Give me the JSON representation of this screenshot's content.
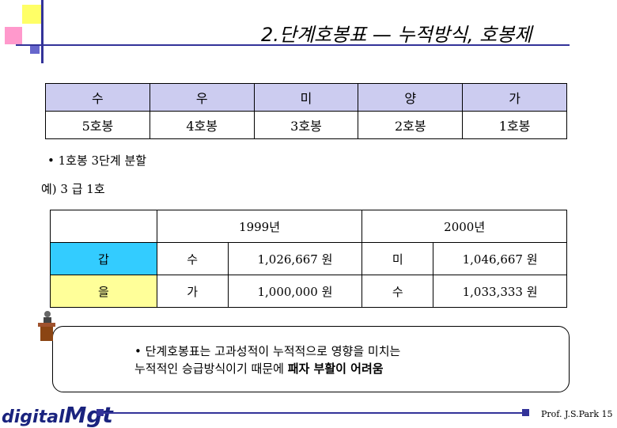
{
  "title": "2.단계호봉표 — 누적방식, 호봉제",
  "grade_table": {
    "headers": [
      "수",
      "우",
      "미",
      "양",
      "가"
    ],
    "values": [
      "5호봉",
      "4호봉",
      "3호봉",
      "2호봉",
      "1호봉"
    ]
  },
  "bullet1": "• 1호봉 3단계 분할",
  "example": "예) 3 급 1호",
  "pay_table": {
    "year1": "1999년",
    "year2": "2000년",
    "rows": [
      {
        "name": "갑",
        "g1": "수",
        "p1": "1,026,667 원",
        "g2": "미",
        "p2": "1,046,667 원"
      },
      {
        "name": "을",
        "g1": "가",
        "p1": "1,000,000 원",
        "g2": "수",
        "p2": "1,033,333 원"
      }
    ]
  },
  "callout": {
    "line1": "• 단계호봉표는 고과성적이 누적적으로 영향을 미치는",
    "line2_pre": "누적적인 승급방식이기 때문에 ",
    "line2_bold": "패자 부활이 어려움"
  },
  "logo": {
    "text_a": "digital",
    "text_b": "Mgt"
  },
  "footer": {
    "prof": "Prof. J.S.Park",
    "page": "15"
  },
  "colors": {
    "accent": "#333399",
    "header_bg": "#ccccf0",
    "cyan": "#33ccff",
    "yellow": "#ffff99"
  }
}
